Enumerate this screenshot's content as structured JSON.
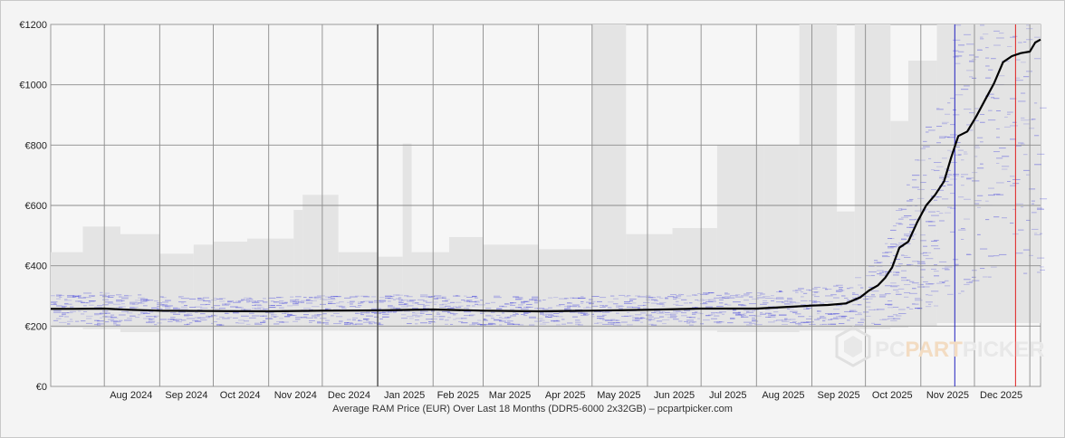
{
  "chart_data": {
    "type": "line",
    "title": "Average RAM Price (EUR) Over Last 18 Months (DDR5-6000 2x32GB) – pcpartpicker.com",
    "watermark": {
      "part1": "PC",
      "part2": "PART",
      "part3": "PICKER"
    },
    "ylim": [
      0,
      1200
    ],
    "yticks": [
      "€0",
      "€200",
      "€400",
      "€600",
      "€800",
      "€1000",
      "€1200"
    ],
    "ytick_values": [
      0,
      200,
      400,
      600,
      800,
      1000,
      1200
    ],
    "xlim": [
      "2024-07-02",
      "2026-01-07"
    ],
    "month_boundaries": [
      "2024-08-01",
      "2024-09-01",
      "2024-10-01",
      "2024-11-01",
      "2024-12-01",
      "2025-01-01",
      "2025-02-01",
      "2025-03-01",
      "2025-04-01",
      "2025-05-01",
      "2025-06-01",
      "2025-07-01",
      "2025-08-01",
      "2025-09-01",
      "2025-10-01",
      "2025-11-01",
      "2025-12-01",
      "2026-01-01"
    ],
    "xtick_labels": [
      "Aug 2024",
      "Sep 2024",
      "Oct 2024",
      "Nov 2024",
      "Dec 2024",
      "Jan 2025",
      "Feb 2025",
      "Mar 2025",
      "Apr 2025",
      "May 2025",
      "Jun 2025",
      "Jul 2025",
      "Aug 2025",
      "Sep 2025",
      "Oct 2025",
      "Nov 2025",
      "Dec 2025"
    ],
    "xtick_dates": [
      "2024-08-16",
      "2024-09-16",
      "2024-10-16",
      "2024-11-16",
      "2024-12-16",
      "2025-01-16",
      "2025-02-15",
      "2025-03-16",
      "2025-04-16",
      "2025-05-16",
      "2025-06-16",
      "2025-07-16",
      "2025-08-16",
      "2025-09-16",
      "2025-10-16",
      "2025-11-16",
      "2025-12-16"
    ],
    "emphasized_vlines": [
      "2025-01-01"
    ],
    "markers": [
      {
        "date": "2025-11-20",
        "color": "#2020c0"
      },
      {
        "date": "2025-12-24",
        "color": "#e02020"
      }
    ],
    "series": [
      {
        "color": "#000000",
        "x": [
          "2024-07-02",
          "2024-07-15",
          "2024-08-01",
          "2024-08-15",
          "2024-09-01",
          "2024-10-01",
          "2024-11-01",
          "2024-12-01",
          "2025-01-01",
          "2025-02-01",
          "2025-03-01",
          "2025-04-01",
          "2025-05-01",
          "2025-06-01",
          "2025-07-01",
          "2025-08-01",
          "2025-08-20",
          "2025-09-01",
          "2025-09-10",
          "2025-09-20",
          "2025-09-28",
          "2025-10-03",
          "2025-10-08",
          "2025-10-12",
          "2025-10-16",
          "2025-10-20",
          "2025-10-25",
          "2025-10-30",
          "2025-11-04",
          "2025-11-09",
          "2025-11-14",
          "2025-11-18",
          "2025-11-22",
          "2025-11-27",
          "2025-12-02",
          "2025-12-07",
          "2025-12-12",
          "2025-12-17",
          "2025-12-22",
          "2025-12-27",
          "2026-01-01",
          "2026-01-04",
          "2026-01-07"
        ],
        "y": [
          257,
          257,
          258,
          254,
          251,
          250,
          249,
          251,
          252,
          255,
          251,
          249,
          251,
          254,
          258,
          258,
          264,
          268,
          270,
          275,
          295,
          318,
          335,
          360,
          395,
          460,
          480,
          545,
          600,
          635,
          680,
          760,
          830,
          845,
          895,
          950,
          1005,
          1075,
          1095,
          1105,
          1110,
          1140,
          1150
        ]
      }
    ],
    "bands": [
      {
        "from": "2024-07-02",
        "to": "2024-07-20",
        "low": 195,
        "high": 445
      },
      {
        "from": "2024-07-20",
        "to": "2024-08-10",
        "low": 190,
        "high": 530
      },
      {
        "from": "2024-08-10",
        "to": "2024-09-01",
        "low": 180,
        "high": 505
      },
      {
        "from": "2024-09-01",
        "to": "2024-09-20",
        "low": 185,
        "high": 440
      },
      {
        "from": "2024-09-20",
        "to": "2024-10-01",
        "low": 185,
        "high": 470
      },
      {
        "from": "2024-10-01",
        "to": "2024-10-20",
        "low": 185,
        "high": 480
      },
      {
        "from": "2024-10-20",
        "to": "2024-11-15",
        "low": 185,
        "high": 490
      },
      {
        "from": "2024-11-15",
        "to": "2024-11-20",
        "low": 185,
        "high": 585
      },
      {
        "from": "2024-11-20",
        "to": "2024-12-10",
        "low": 185,
        "high": 635
      },
      {
        "from": "2024-12-10",
        "to": "2025-01-01",
        "low": 185,
        "high": 445
      },
      {
        "from": "2025-01-01",
        "to": "2025-01-15",
        "low": 185,
        "high": 430
      },
      {
        "from": "2025-01-15",
        "to": "2025-01-20",
        "low": 185,
        "high": 805
      },
      {
        "from": "2025-01-20",
        "to": "2025-02-10",
        "low": 185,
        "high": 445
      },
      {
        "from": "2025-02-10",
        "to": "2025-03-01",
        "low": 185,
        "high": 495
      },
      {
        "from": "2025-03-01",
        "to": "2025-04-01",
        "low": 185,
        "high": 470
      },
      {
        "from": "2025-04-01",
        "to": "2025-05-01",
        "low": 185,
        "high": 455
      },
      {
        "from": "2025-05-01",
        "to": "2025-05-20",
        "low": 185,
        "high": 1200
      },
      {
        "from": "2025-05-20",
        "to": "2025-06-15",
        "low": 185,
        "high": 505
      },
      {
        "from": "2025-06-15",
        "to": "2025-07-10",
        "low": 185,
        "high": 525
      },
      {
        "from": "2025-07-10",
        "to": "2025-08-05",
        "low": 180,
        "high": 800
      },
      {
        "from": "2025-08-05",
        "to": "2025-08-25",
        "low": 180,
        "high": 800
      },
      {
        "from": "2025-08-25",
        "to": "2025-09-15",
        "low": 185,
        "high": 1200
      },
      {
        "from": "2025-09-15",
        "to": "2025-09-25",
        "low": 185,
        "high": 580
      },
      {
        "from": "2025-09-25",
        "to": "2025-10-15",
        "low": 190,
        "high": 1200
      },
      {
        "from": "2025-10-15",
        "to": "2025-10-25",
        "low": 195,
        "high": 880
      },
      {
        "from": "2025-10-25",
        "to": "2025-11-10",
        "low": 200,
        "high": 1080
      },
      {
        "from": "2025-11-10",
        "to": "2026-01-07",
        "low": 210,
        "high": 1200
      }
    ]
  }
}
